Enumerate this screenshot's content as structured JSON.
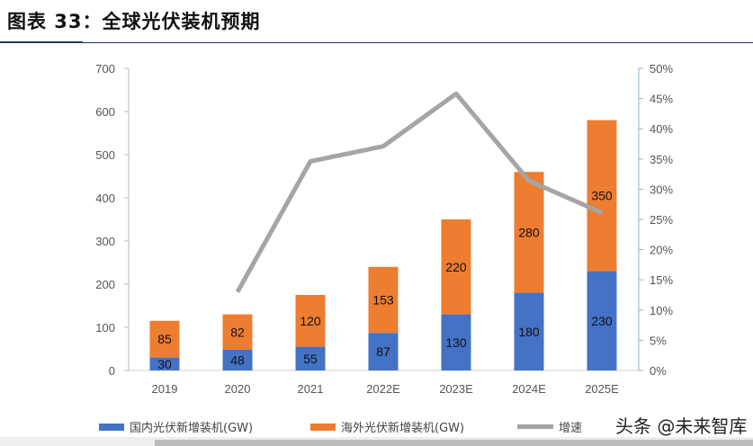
{
  "header": {
    "title": "图表 33：全球光伏装机预期"
  },
  "watermark": "头条 @未来智库",
  "colors": {
    "domestic": "#4472c4",
    "overseas": "#ed7d31",
    "growth": "#a5a5a5"
  },
  "chart_data": {
    "type": "bar",
    "stacked": true,
    "categories": [
      "2019",
      "2020",
      "2021",
      "2022E",
      "2023E",
      "2024E",
      "2025E"
    ],
    "series": [
      {
        "name": "国内光伏新增装机(GW)",
        "type": "bar",
        "axis": "left",
        "values": [
          30,
          48,
          55,
          87,
          130,
          180,
          230
        ]
      },
      {
        "name": "海外光伏新增装机(GW)",
        "type": "bar",
        "axis": "left",
        "values": [
          85,
          82,
          120,
          153,
          220,
          280,
          350
        ]
      },
      {
        "name": "增速",
        "type": "line",
        "axis": "right",
        "values": [
          null,
          13.0,
          34.6,
          37.1,
          45.8,
          31.4,
          26.1
        ]
      }
    ],
    "ylim": [
      0,
      700
    ],
    "yticks": [
      "0",
      "100",
      "200",
      "300",
      "400",
      "500",
      "600",
      "700"
    ],
    "y2lim": [
      0,
      50
    ],
    "y2ticks": [
      "0%",
      "5%",
      "10%",
      "15%",
      "20%",
      "25%",
      "30%",
      "35%",
      "40%",
      "45%",
      "50%"
    ],
    "legend": "bottom",
    "grid": false
  }
}
